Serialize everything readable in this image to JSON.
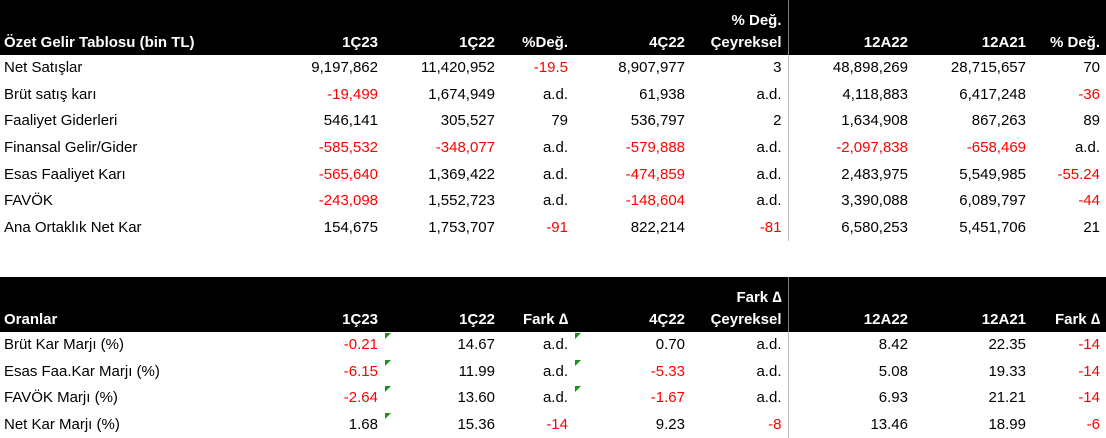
{
  "income": {
    "headers_top": [
      "",
      "",
      "",
      "",
      "",
      "% Değ.",
      "",
      "",
      ""
    ],
    "headers": [
      "Özet Gelir Tablosu (bin TL)",
      "1Ç23",
      "1Ç22",
      "%Değ.",
      "4Ç22",
      "Çeyreksel",
      "12A22",
      "12A21",
      "% Değ."
    ],
    "rows": [
      {
        "label": "Net Satışlar",
        "cells": [
          "9,197,862",
          "11,420,952",
          "-19.5",
          "8,907,977",
          "3",
          "48,898,269",
          "28,715,657",
          "70"
        ]
      },
      {
        "label": "Brüt satış karı",
        "cells": [
          "-19,499",
          "1,674,949",
          "a.d.",
          "61,938",
          "a.d.",
          "4,118,883",
          "6,417,248",
          "-36"
        ]
      },
      {
        "label": "Faaliyet Giderleri",
        "cells": [
          "546,141",
          "305,527",
          "79",
          "536,797",
          "2",
          "1,634,908",
          "867,263",
          "89"
        ]
      },
      {
        "label": "Finansal Gelir/Gider",
        "cells": [
          "-585,532",
          "-348,077",
          "a.d.",
          "-579,888",
          "a.d.",
          "-2,097,838",
          "-658,469",
          "a.d."
        ]
      },
      {
        "label": "Esas Faaliyet Karı",
        "cells": [
          "-565,640",
          "1,369,422",
          "a.d.",
          "-474,859",
          "a.d.",
          "2,483,975",
          "5,549,985",
          "-55.24"
        ]
      },
      {
        "label": "FAVÖK",
        "cells": [
          "-243,098",
          "1,552,723",
          "a.d.",
          "-148,604",
          "a.d.",
          "3,390,088",
          "6,089,797",
          "-44"
        ]
      },
      {
        "label": "Ana Ortaklık Net Kar",
        "cells": [
          "154,675",
          "1,753,707",
          "-91",
          "822,214",
          "-81",
          "6,580,253",
          "5,451,706",
          "21"
        ]
      }
    ]
  },
  "ratios": {
    "headers_top": [
      "",
      "",
      "",
      "",
      "",
      "Fark ∆",
      "",
      "",
      ""
    ],
    "headers": [
      "Oranlar",
      "1Ç23",
      "1Ç22",
      "Fark ∆",
      "4Ç22",
      "Çeyreksel",
      "12A22",
      "12A21",
      "Fark ∆"
    ],
    "rows": [
      {
        "label": "Brüt Kar Marjı (%)",
        "cells": [
          "-0.21",
          "14.67",
          "a.d.",
          "0.70",
          "a.d.",
          "8.42",
          "22.35",
          "-14"
        ]
      },
      {
        "label": "Esas Faa.Kar Marjı (%)",
        "cells": [
          "-6.15",
          "11.99",
          "a.d.",
          "-5.33",
          "a.d.",
          "5.08",
          "19.33",
          "-14"
        ]
      },
      {
        "label": "FAVÖK Marjı (%)",
        "cells": [
          "-2.64",
          "13.60",
          "a.d.",
          "-1.67",
          "a.d.",
          "6.93",
          "21.21",
          "-14"
        ]
      },
      {
        "label": "Net Kar Marjı (%)",
        "cells": [
          "1.68",
          "15.36",
          "-14",
          "9.23",
          "-8",
          "13.46",
          "18.99",
          "-6"
        ]
      }
    ]
  },
  "colors": {
    "header_bg": "#000000",
    "header_text": "#ffffff",
    "negative": "#ff0000",
    "error_marker": "#1a8f1a"
  }
}
